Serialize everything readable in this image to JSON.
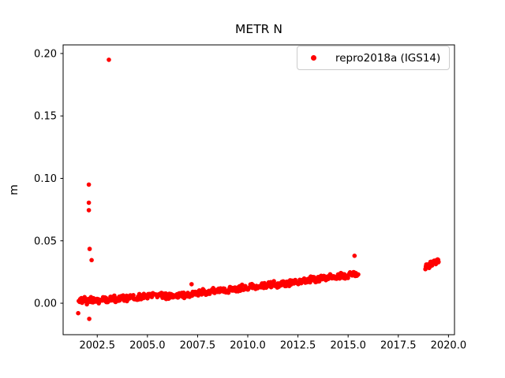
{
  "title": "METR N",
  "ylabel": "m",
  "legend": {
    "label": "repro2018a (IGS14)",
    "marker_color": "#ff0000",
    "border_color": "#cccccc",
    "position": "upper right"
  },
  "colors": {
    "marker": "#ff0000",
    "axis": "#000000",
    "background": "#ffffff"
  },
  "chart_data": {
    "type": "scatter",
    "title": "METR N",
    "xlabel": "",
    "ylabel": "m",
    "grid": false,
    "legend_position": "upper right",
    "xlim": [
      2000.8,
      2020.3
    ],
    "ylim": [
      -0.0252,
      0.2069
    ],
    "xticks": [
      2002.5,
      2005.0,
      2007.5,
      2010.0,
      2012.5,
      2015.0,
      2017.5,
      2020.0
    ],
    "xtick_labels": [
      "2002.5",
      "2005.0",
      "2007.5",
      "2010.0",
      "2012.5",
      "2015.0",
      "2017.5",
      "2020.0"
    ],
    "yticks": [
      0.0,
      0.05,
      0.1,
      0.15,
      0.2
    ],
    "ytick_labels": [
      "0.00",
      "0.05",
      "0.10",
      "0.15",
      "0.20"
    ],
    "series": [
      {
        "name": "repro2018a (IGS14)",
        "color": "#ff0000",
        "marker": "dot",
        "main_band": {
          "description": "dense daily scatter band rising roughly linearly",
          "t_start": 2001.65,
          "t_step": 0.15,
          "values": [
            0.0015,
            0.0017,
            0.0018,
            0.002,
            0.0021,
            0.0023,
            0.0024,
            0.0026,
            0.0028,
            0.003,
            0.0032,
            0.0034,
            0.0036,
            0.0037,
            0.0039,
            0.0041,
            0.0043,
            0.0045,
            0.0047,
            0.0049,
            0.0051,
            0.0053,
            0.0054,
            0.0056,
            0.0056,
            0.0057,
            0.0058,
            0.0058,
            0.0059,
            0.006,
            0.0061,
            0.0062,
            0.0063,
            0.0064,
            0.0064,
            0.0066,
            0.007,
            0.0074,
            0.0079,
            0.0085,
            0.0087,
            0.009,
            0.0092,
            0.0095,
            0.0097,
            0.01,
            0.0102,
            0.0105,
            0.0107,
            0.011,
            0.0112,
            0.0114,
            0.0116,
            0.0119,
            0.0121,
            0.0123,
            0.0126,
            0.0128,
            0.0131,
            0.0134,
            0.0137,
            0.014,
            0.0144,
            0.0147,
            0.015,
            0.0152,
            0.0154,
            0.0156,
            0.0158,
            0.016,
            0.0164,
            0.0168,
            0.0171,
            0.0175,
            0.0179,
            0.0182,
            0.0186,
            0.019,
            0.0193,
            0.0196,
            0.0199,
            0.0202,
            0.0204,
            0.0207,
            0.021,
            0.0212,
            0.0214,
            0.0216,
            0.0218,
            0.0221,
            0.0225,
            0.023,
            0.0235
          ]
        },
        "outliers": [
          [
            2003.08,
            0.195
          ],
          [
            2002.08,
            0.095
          ],
          [
            2002.08,
            0.0805
          ],
          [
            2002.08,
            0.0745
          ],
          [
            2002.12,
            0.0435
          ],
          [
            2002.22,
            0.0345
          ],
          [
            2001.55,
            -0.008
          ],
          [
            2002.1,
            -0.0125
          ],
          [
            2007.2,
            0.0152
          ],
          [
            2015.32,
            0.038
          ]
        ],
        "cluster_2019": [
          [
            2018.87,
            0.0285
          ],
          [
            2018.9,
            0.03
          ],
          [
            2018.95,
            0.0295
          ],
          [
            2019.0,
            0.031
          ],
          [
            2019.03,
            0.0285
          ],
          [
            2019.08,
            0.0305
          ],
          [
            2019.12,
            0.032
          ],
          [
            2019.16,
            0.0305
          ],
          [
            2019.2,
            0.0325
          ],
          [
            2019.25,
            0.031
          ],
          [
            2019.3,
            0.033
          ],
          [
            2019.35,
            0.0325
          ],
          [
            2019.38,
            0.034
          ],
          [
            2019.42,
            0.0335
          ],
          [
            2019.46,
            0.035
          ],
          [
            2019.5,
            0.034
          ]
        ]
      }
    ]
  }
}
